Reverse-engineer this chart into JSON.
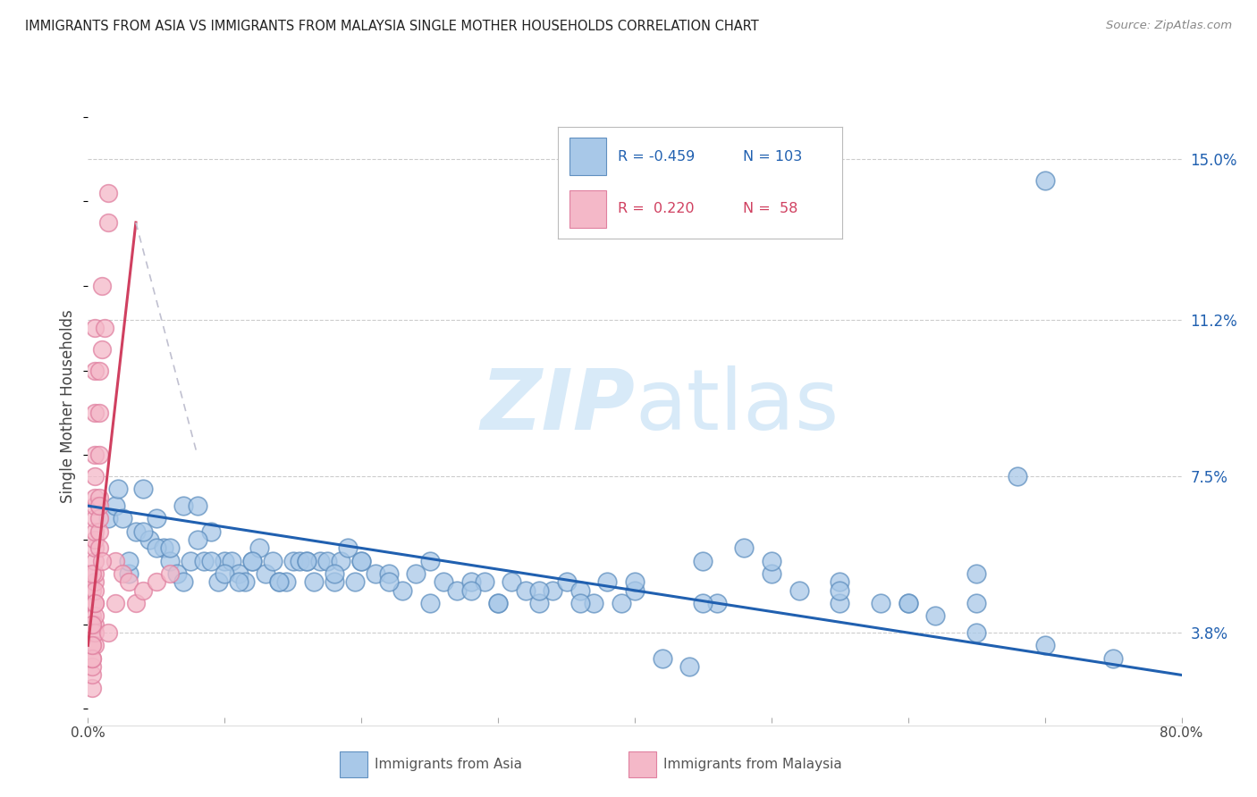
{
  "title": "IMMIGRANTS FROM ASIA VS IMMIGRANTS FROM MALAYSIA SINGLE MOTHER HOUSEHOLDS CORRELATION CHART",
  "source": "Source: ZipAtlas.com",
  "ylabel": "Single Mother Households",
  "ytick_values": [
    3.8,
    7.5,
    11.2,
    15.0
  ],
  "xlim": [
    0.0,
    80.0
  ],
  "ylim": [
    1.8,
    16.5
  ],
  "legend_blue_R": "-0.459",
  "legend_blue_N": "103",
  "legend_pink_R": "0.220",
  "legend_pink_N": "58",
  "blue_color": "#a8c8e8",
  "pink_color": "#f4b8c8",
  "blue_edge_color": "#6090c0",
  "pink_edge_color": "#e080a0",
  "blue_trend_color": "#2060b0",
  "pink_trend_color": "#d04060",
  "pink_trend_dashed_color": "#c0c0d0",
  "watermark_zip": "ZIP",
  "watermark_atlas": "atlas",
  "watermark_color": "#d8eaf8",
  "blue_scatter_x": [
    1.5,
    2.0,
    2.2,
    2.5,
    3.0,
    3.5,
    4.0,
    4.5,
    5.0,
    5.5,
    6.0,
    6.5,
    7.0,
    7.5,
    8.0,
    8.5,
    9.0,
    9.5,
    10.0,
    10.5,
    11.0,
    11.5,
    12.0,
    12.5,
    13.0,
    13.5,
    14.0,
    14.5,
    15.0,
    15.5,
    16.0,
    16.5,
    17.0,
    17.5,
    18.0,
    18.5,
    19.0,
    19.5,
    20.0,
    21.0,
    22.0,
    23.0,
    24.0,
    25.0,
    26.0,
    27.0,
    28.0,
    29.0,
    30.0,
    31.0,
    32.0,
    33.0,
    34.0,
    35.0,
    36.0,
    37.0,
    38.0,
    39.0,
    40.0,
    42.0,
    44.0,
    46.0,
    48.0,
    50.0,
    52.0,
    55.0,
    58.0,
    60.0,
    62.0,
    65.0,
    68.0,
    70.0,
    3.0,
    4.0,
    5.0,
    6.0,
    7.0,
    8.0,
    9.0,
    10.0,
    11.0,
    12.0,
    14.0,
    16.0,
    18.0,
    20.0,
    22.0,
    25.0,
    28.0,
    30.0,
    33.0,
    36.0,
    40.0,
    45.0,
    50.0,
    55.0,
    60.0,
    65.0,
    70.0,
    45.0,
    55.0,
    65.0,
    75.0
  ],
  "blue_scatter_y": [
    6.5,
    6.8,
    7.2,
    6.5,
    5.2,
    6.2,
    7.2,
    6.0,
    6.5,
    5.8,
    5.5,
    5.2,
    6.8,
    5.5,
    6.8,
    5.5,
    6.2,
    5.0,
    5.5,
    5.5,
    5.2,
    5.0,
    5.5,
    5.8,
    5.2,
    5.5,
    5.0,
    5.0,
    5.5,
    5.5,
    5.5,
    5.0,
    5.5,
    5.5,
    5.0,
    5.5,
    5.8,
    5.0,
    5.5,
    5.2,
    5.2,
    4.8,
    5.2,
    4.5,
    5.0,
    4.8,
    5.0,
    5.0,
    4.5,
    5.0,
    4.8,
    4.5,
    4.8,
    5.0,
    4.8,
    4.5,
    5.0,
    4.5,
    4.8,
    3.2,
    3.0,
    4.5,
    5.8,
    5.2,
    4.8,
    4.5,
    4.5,
    4.5,
    4.2,
    4.5,
    7.5,
    14.5,
    5.5,
    6.2,
    5.8,
    5.8,
    5.0,
    6.0,
    5.5,
    5.2,
    5.0,
    5.5,
    5.0,
    5.5,
    5.2,
    5.5,
    5.0,
    5.5,
    4.8,
    4.5,
    4.8,
    4.5,
    5.0,
    4.5,
    5.5,
    5.0,
    4.5,
    5.2,
    3.5,
    5.5,
    4.8,
    3.8,
    3.2
  ],
  "pink_scatter_x": [
    0.3,
    0.3,
    0.3,
    0.3,
    0.3,
    0.3,
    0.3,
    0.3,
    0.3,
    0.3,
    0.5,
    0.5,
    0.5,
    0.5,
    0.5,
    0.5,
    0.5,
    0.5,
    0.5,
    0.5,
    0.5,
    0.5,
    0.5,
    0.5,
    0.8,
    0.8,
    0.8,
    0.8,
    0.8,
    0.8,
    1.0,
    1.0,
    1.2,
    1.5,
    1.5,
    2.0,
    2.5,
    3.0,
    3.5,
    4.0,
    5.0,
    6.0,
    0.5,
    0.5,
    0.5,
    0.5,
    0.5,
    0.5,
    0.5,
    0.3,
    0.3,
    0.3,
    0.3,
    0.8,
    0.8,
    1.0,
    1.5,
    2.0
  ],
  "pink_scatter_y": [
    2.5,
    2.8,
    3.0,
    3.2,
    3.5,
    3.8,
    4.0,
    4.2,
    4.5,
    4.8,
    5.0,
    5.2,
    5.5,
    5.8,
    6.0,
    6.2,
    6.5,
    6.8,
    7.0,
    7.5,
    8.0,
    9.0,
    10.0,
    11.0,
    6.2,
    6.5,
    7.0,
    8.0,
    9.0,
    10.0,
    10.5,
    12.0,
    11.0,
    13.5,
    14.2,
    5.5,
    5.2,
    5.0,
    4.5,
    4.8,
    5.0,
    5.2,
    4.0,
    4.2,
    4.5,
    4.8,
    3.5,
    3.8,
    4.5,
    5.2,
    3.2,
    3.5,
    4.0,
    6.8,
    5.8,
    5.5,
    3.8,
    4.5
  ],
  "blue_trend_x": [
    0.0,
    80.0
  ],
  "blue_trend_y": [
    6.8,
    2.8
  ],
  "pink_trend_x": [
    0.0,
    3.5
  ],
  "pink_trend_y": [
    3.5,
    13.5
  ],
  "pink_dashed_trend_x": [
    3.5,
    8.0
  ],
  "pink_dashed_trend_y": [
    13.5,
    8.0
  ]
}
